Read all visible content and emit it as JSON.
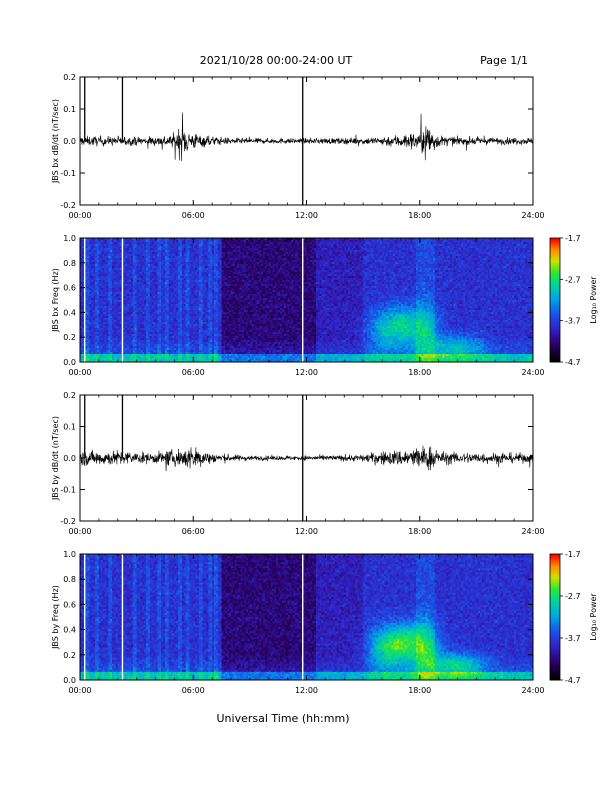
{
  "header": {
    "date_title": "2021/10/28  00:00-24:00 UT",
    "page_label": "Page 1/1"
  },
  "x_axis": {
    "label": "Universal Time (hh:mm)",
    "ticks": [
      "00:00",
      "06:00",
      "12:00",
      "18:00",
      "24:00"
    ]
  },
  "chart_data": [
    {
      "type": "line",
      "ylabel": "JBS bx dB/dt (nT/sec)",
      "xlim": [
        0,
        24
      ],
      "ylim": [
        -0.2,
        0.2
      ],
      "yticks": [
        "0.2",
        "0.1",
        "0.0",
        "-0.1",
        "-0.2"
      ],
      "gap_markers_hours": [
        0.25,
        2.25,
        11.8
      ],
      "envelope": {
        "hours": [
          0,
          1,
          2,
          3,
          4,
          5,
          5.3,
          6,
          7,
          8,
          9,
          10,
          11,
          12,
          13,
          14,
          15,
          16,
          17,
          18,
          18.4,
          19,
          20,
          21,
          22,
          23,
          24
        ],
        "amplitude": [
          0.012,
          0.013,
          0.012,
          0.011,
          0.012,
          0.018,
          0.045,
          0.022,
          0.012,
          0.008,
          0.007,
          0.007,
          0.007,
          0.007,
          0.008,
          0.008,
          0.009,
          0.012,
          0.018,
          0.025,
          0.05,
          0.015,
          0.01,
          0.01,
          0.009,
          0.009,
          0.009
        ]
      }
    },
    {
      "type": "heatmap",
      "ylabel": "JBS bx Freq (Hz)",
      "xlim": [
        0,
        24
      ],
      "ylim": [
        0,
        1.0
      ],
      "yticks": [
        "1.0",
        "0.8",
        "0.6",
        "0.4",
        "0.2",
        "0.0"
      ],
      "colorbar": {
        "label": "Log₁₀ Power",
        "ticks": [
          "-1.7",
          "-2.7",
          "-3.7",
          "-4.7"
        ],
        "range": [
          -4.7,
          -1.7
        ]
      },
      "gap_markers_hours": [
        0.25,
        2.25,
        11.8
      ]
    },
    {
      "type": "line",
      "ylabel": "JBS by dB/dt (nT/sec)",
      "xlim": [
        0,
        24
      ],
      "ylim": [
        -0.2,
        0.2
      ],
      "yticks": [
        "0.2",
        "0.1",
        "0.0",
        "-0.1",
        "-0.2"
      ],
      "gap_markers_hours": [
        0.25,
        2.25,
        11.8
      ],
      "envelope": {
        "hours": [
          0,
          1,
          2,
          3,
          4,
          5,
          5.5,
          6,
          7,
          8,
          9,
          10,
          11,
          12,
          13,
          14,
          15,
          16,
          17,
          18,
          18.5,
          19,
          20,
          21,
          22,
          23,
          24
        ],
        "amplitude": [
          0.02,
          0.02,
          0.02,
          0.015,
          0.015,
          0.022,
          0.03,
          0.03,
          0.015,
          0.009,
          0.007,
          0.006,
          0.006,
          0.006,
          0.007,
          0.008,
          0.01,
          0.018,
          0.022,
          0.03,
          0.035,
          0.018,
          0.015,
          0.015,
          0.014,
          0.013,
          0.013
        ]
      }
    },
    {
      "type": "heatmap",
      "ylabel": "JBS by Freq (Hz)",
      "xlim": [
        0,
        24
      ],
      "ylim": [
        0,
        1.0
      ],
      "yticks": [
        "1.0",
        "0.8",
        "0.6",
        "0.4",
        "0.2",
        "0.0"
      ],
      "colorbar": {
        "label": "Log₁₀ Power",
        "ticks": [
          "-1.7",
          "-2.7",
          "-3.7",
          "-4.7"
        ],
        "range": [
          -4.7,
          -1.7
        ]
      },
      "gap_markers_hours": [
        0.25,
        2.25,
        11.8
      ]
    }
  ]
}
